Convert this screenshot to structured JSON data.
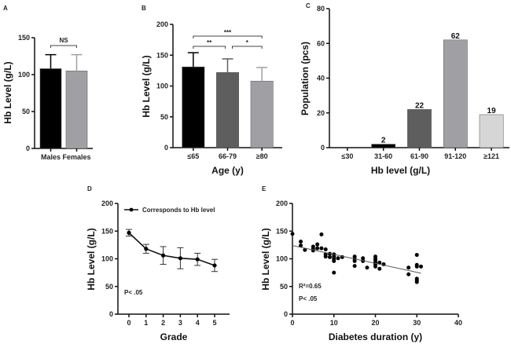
{
  "chart_data": [
    {
      "panel": "A",
      "type": "bar",
      "ylabel": "Hb Level (g/L)",
      "xlabel": "",
      "ylim": [
        0,
        150
      ],
      "yticks": [
        0,
        50,
        100,
        150
      ],
      "categories": [
        "Males",
        "Females"
      ],
      "values": [
        108,
        105
      ],
      "errors": [
        19,
        22
      ],
      "colors": [
        "#000000",
        "#a0a0a4"
      ],
      "significance": [
        {
          "from": 0,
          "to": 1,
          "label": "NS"
        }
      ]
    },
    {
      "panel": "B",
      "type": "bar",
      "ylabel": "Hb Level (g/L)",
      "xlabel": "Age (y)",
      "ylim": [
        0,
        200
      ],
      "yticks": [
        0,
        50,
        100,
        150,
        200
      ],
      "categories": [
        "≤65",
        "66-79",
        "≥80"
      ],
      "values": [
        131,
        122,
        108
      ],
      "errors": [
        23,
        22,
        22
      ],
      "colors": [
        "#000000",
        "#5e5e5e",
        "#a0a0a4"
      ],
      "significance": [
        {
          "from": 0,
          "to": 2,
          "label": "***"
        },
        {
          "from": 0,
          "to": 1,
          "label": "**"
        },
        {
          "from": 1,
          "to": 2,
          "label": "*"
        }
      ]
    },
    {
      "panel": "C",
      "type": "bar",
      "ylabel": "Population (pcs)",
      "xlabel": "Hb level (g/L)",
      "ylim": [
        0,
        80
      ],
      "yticks": [
        0,
        20,
        40,
        60,
        80
      ],
      "categories": [
        "≤30",
        "31-60",
        "61-90",
        "91-120",
        "≥121"
      ],
      "values": [
        0,
        2,
        22,
        62,
        19
      ],
      "data_labels": [
        "",
        "2",
        "22",
        "62",
        "19"
      ],
      "colors": [
        "#000000",
        "#000000",
        "#5e5e5e",
        "#a0a0a4",
        "#d6d6d6"
      ]
    },
    {
      "panel": "D",
      "type": "line",
      "ylabel": "Hb Level (g/L)",
      "xlabel": "Grade",
      "ylim": [
        0,
        200
      ],
      "yticks": [
        0,
        50,
        100,
        150,
        200
      ],
      "x": [
        0,
        1,
        2,
        3,
        4,
        5
      ],
      "series": [
        {
          "name": "Corresponds to Hb level",
          "values": [
            147,
            118,
            106,
            101,
            99,
            88
          ],
          "errors": [
            6,
            8,
            16,
            19,
            11,
            11
          ]
        }
      ],
      "legend": "top-right",
      "annotations": [
        "P< .05"
      ]
    },
    {
      "panel": "E",
      "type": "scatter",
      "ylabel": "Hb Level (g/L)",
      "xlabel": "Diabetes duration (y)",
      "xlim": [
        0,
        40
      ],
      "ylim": [
        0,
        200
      ],
      "xticks": [
        0,
        10,
        20,
        30,
        40
      ],
      "yticks": [
        0,
        50,
        100,
        150,
        200
      ],
      "points": [
        [
          0,
          145
        ],
        [
          2,
          131
        ],
        [
          2,
          124
        ],
        [
          3,
          116
        ],
        [
          5,
          122
        ],
        [
          5,
          118
        ],
        [
          5,
          115
        ],
        [
          6,
          126
        ],
        [
          6,
          119
        ],
        [
          7,
          144
        ],
        [
          7,
          119
        ],
        [
          8,
          117
        ],
        [
          8,
          108
        ],
        [
          8,
          104
        ],
        [
          9,
          109
        ],
        [
          9,
          103
        ],
        [
          10,
          108
        ],
        [
          10,
          104
        ],
        [
          10,
          100
        ],
        [
          10,
          96
        ],
        [
          10,
          75
        ],
        [
          11,
          101
        ],
        [
          12,
          103
        ],
        [
          15,
          104
        ],
        [
          15,
          100
        ],
        [
          15,
          96
        ],
        [
          15,
          87
        ],
        [
          17,
          101
        ],
        [
          17,
          96
        ],
        [
          18,
          84
        ],
        [
          20,
          104
        ],
        [
          20,
          100
        ],
        [
          20,
          97
        ],
        [
          20,
          93
        ],
        [
          20,
          90
        ],
        [
          20,
          86
        ],
        [
          21,
          93
        ],
        [
          21,
          82
        ],
        [
          22,
          90
        ],
        [
          28,
          84
        ],
        [
          28,
          72
        ],
        [
          30,
          107
        ],
        [
          30,
          89
        ],
        [
          30,
          86
        ],
        [
          30,
          64
        ],
        [
          30,
          61
        ],
        [
          30,
          58
        ],
        [
          31,
          86
        ]
      ],
      "regression": {
        "x": [
          0,
          31
        ],
        "y": [
          124,
          74
        ]
      },
      "annotations": [
        "R²=0.65",
        "P< .05"
      ]
    }
  ],
  "panel_labels": [
    "A",
    "B",
    "C",
    "D",
    "E"
  ]
}
